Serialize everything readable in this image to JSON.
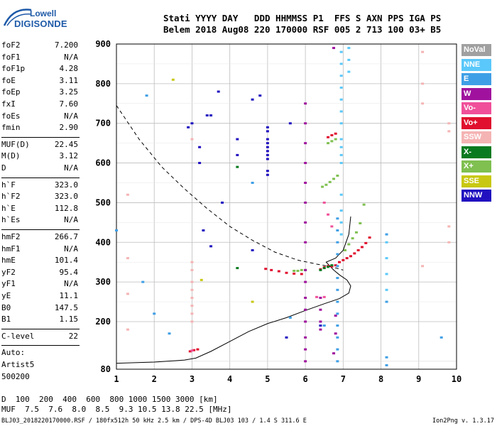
{
  "logo": {
    "line1": "Lowell",
    "line2": "DIGISONDE"
  },
  "header": {
    "line1": "Stati YYYY DAY   DDD HHMMSS P1  FFS S AXN PPS IGA PS",
    "line2": "Belem 2018 Aug08 220 170000 RSF 005 2 713 100 03+ B5"
  },
  "params": [
    [
      {
        "name": "foF2",
        "value": "7.200"
      },
      {
        "name": "foF1",
        "value": "N/A"
      },
      {
        "name": "foF1p",
        "value": "4.28"
      },
      {
        "name": "foE",
        "value": "3.11"
      },
      {
        "name": "foEp",
        "value": "3.25"
      },
      {
        "name": "fxI",
        "value": "7.60"
      },
      {
        "name": "foEs",
        "value": "N/A"
      },
      {
        "name": "fmin",
        "value": "2.90"
      }
    ],
    [
      {
        "name": "MUF(D)",
        "value": "22.45"
      },
      {
        "name": "M(D)",
        "value": "3.12"
      },
      {
        "name": "D",
        "value": "N/A"
      }
    ],
    [
      {
        "name": "h`F",
        "value": "323.0"
      },
      {
        "name": "h`F2",
        "value": "323.0"
      },
      {
        "name": "h`E",
        "value": "112.8"
      },
      {
        "name": "h`Es",
        "value": "N/A"
      }
    ],
    [
      {
        "name": "hmF2",
        "value": "266.7"
      },
      {
        "name": "hmF1",
        "value": "N/A"
      },
      {
        "name": "hmE",
        "value": "101.4"
      },
      {
        "name": "yF2",
        "value": "95.4"
      },
      {
        "name": "yF1",
        "value": "N/A"
      },
      {
        "name": "yE",
        "value": "11.1"
      },
      {
        "name": "B0",
        "value": "147.5"
      },
      {
        "name": "B1",
        "value": "1.15"
      }
    ],
    [
      {
        "name": "C-level",
        "value": "22"
      }
    ],
    [
      {
        "name": "Auto:",
        "value": ""
      },
      {
        "name": "Artist5",
        "value": ""
      },
      {
        "name": "500200",
        "value": ""
      }
    ]
  ],
  "legend": [
    {
      "label": "NoVal",
      "color": "#a0a0a0"
    },
    {
      "label": "NNE",
      "color": "#5ac8fa"
    },
    {
      "label": "E",
      "color": "#3f9fe6"
    },
    {
      "label": "W",
      "color": "#a0129e"
    },
    {
      "label": "Vo-",
      "color": "#f0509a"
    },
    {
      "label": "Vo+",
      "color": "#e0102e"
    },
    {
      "label": "SSW",
      "color": "#f5b4b4"
    },
    {
      "label": "X-",
      "color": "#0a7a20"
    },
    {
      "label": "X+",
      "color": "#7fc050"
    },
    {
      "label": "SSE",
      "color": "#c8c814"
    },
    {
      "label": "NNW",
      "color": "#2010c0"
    }
  ],
  "chart_data": {
    "type": "scatter",
    "xlim": [
      1,
      10
    ],
    "ylim": [
      80,
      900
    ],
    "x_ticks": [
      "1",
      "2",
      "3",
      "4",
      "5",
      "6",
      "7",
      "8",
      "9",
      "10"
    ],
    "y_ticks": [
      "80",
      "200",
      "300",
      "400",
      "500",
      "600",
      "700",
      "800",
      "900"
    ],
    "y_tick_values": [
      80,
      200,
      300,
      400,
      500,
      600,
      700,
      800,
      900
    ],
    "grid": true,
    "series": [
      {
        "name": "Vo+",
        "color": "#e0102e",
        "x": [
          2.95,
          3.05,
          3.15,
          4.95,
          5.1,
          5.3,
          5.5,
          5.7,
          5.9,
          6.4,
          6.5,
          6.6,
          6.7,
          6.8,
          6.9,
          7.0,
          7.1,
          7.2,
          7.3,
          7.4,
          7.5,
          7.6,
          7.7,
          6.6,
          6.7,
          6.8
        ],
        "y": [
          125,
          128,
          130,
          333,
          330,
          327,
          323,
          321,
          320,
          332,
          337,
          340,
          339,
          342,
          350,
          355,
          360,
          365,
          372,
          380,
          388,
          398,
          412,
          665,
          670,
          674
        ]
      },
      {
        "name": "X+",
        "color": "#7fc050",
        "x": [
          5.7,
          5.8,
          5.9,
          6.0,
          6.45,
          6.55,
          6.65,
          6.75,
          6.85,
          7.05,
          7.15,
          7.25,
          7.35,
          7.45,
          7.55,
          6.6,
          6.7,
          6.8
        ],
        "y": [
          328,
          328,
          330,
          330,
          540,
          545,
          552,
          560,
          568,
          380,
          395,
          410,
          425,
          448,
          495,
          650,
          655,
          660
        ]
      },
      {
        "name": "X-",
        "color": "#0a7a20",
        "x": [
          4.2,
          4.2,
          6.4,
          6.5,
          6.6,
          6.7
        ],
        "y": [
          335,
          590,
          330,
          335,
          338,
          342
        ]
      },
      {
        "name": "Vo-",
        "color": "#f0509a",
        "x": [
          3.0,
          6.3,
          6.5,
          6.7,
          6.5,
          6.6
        ],
        "y": [
          127,
          262,
          262,
          440,
          500,
          470
        ]
      },
      {
        "name": "W",
        "color": "#a0129e",
        "x": [
          6.0,
          6.0,
          6.0,
          6.0,
          6.0,
          6.0,
          6.0,
          6.0,
          6.0,
          6.0,
          6.0,
          6.0,
          6.0,
          6.0,
          6.0,
          6.0,
          6.75,
          6.8,
          6.8,
          6.75,
          6.4,
          6.4,
          6.4,
          6.4
        ],
        "y": [
          100,
          130,
          160,
          200,
          230,
          260,
          300,
          330,
          400,
          450,
          500,
          550,
          600,
          650,
          700,
          750,
          120,
          170,
          215,
          890,
          260,
          230,
          200,
          180
        ]
      },
      {
        "name": "NNE",
        "color": "#5ac8fa",
        "x": [
          6.95,
          6.95,
          6.95,
          6.95,
          6.95,
          6.95,
          6.95,
          6.95,
          6.95,
          6.95,
          6.95,
          6.95,
          6.95,
          6.95,
          6.95,
          7.15,
          7.15,
          7.15,
          8.15,
          8.15,
          8.15,
          8.15
        ],
        "y": [
          600,
          620,
          640,
          660,
          700,
          730,
          760,
          790,
          820,
          850,
          880,
          420,
          450,
          480,
          520,
          830,
          860,
          890,
          280,
          320,
          360,
          400
        ]
      },
      {
        "name": "E",
        "color": "#3f9fe6",
        "x": [
          6.85,
          6.85,
          6.85,
          6.85,
          6.85,
          6.85,
          6.85,
          6.85,
          6.85,
          6.85,
          6.85,
          6.85,
          6.85,
          8.15,
          8.15,
          8.15,
          8.15,
          1.0,
          1.7,
          1.8,
          2.0,
          2.4,
          4.6,
          5.6,
          6.5,
          9.6
        ],
        "y": [
          100,
          130,
          160,
          190,
          220,
          250,
          280,
          310,
          340,
          370,
          400,
          430,
          460,
          90,
          110,
          250,
          420,
          430,
          300,
          770,
          220,
          170,
          550,
          210,
          190,
          160
        ]
      },
      {
        "name": "SSW",
        "color": "#f5b4b4",
        "x": [
          3.0,
          3.0,
          3.0,
          3.0,
          3.0,
          3.0,
          3.0,
          3.0,
          3.0,
          1.3,
          1.3,
          1.3,
          9.8,
          9.8,
          9.8,
          9.1,
          9.1,
          9.1,
          9.8,
          1.3,
          9.1
        ],
        "y": [
          200,
          220,
          240,
          260,
          280,
          300,
          330,
          350,
          660,
          270,
          360,
          520,
          400,
          440,
          680,
          750,
          800,
          880,
          700,
          180,
          340
        ]
      },
      {
        "name": "SSE",
        "color": "#c8c814",
        "x": [
          2.5,
          3.25,
          4.6
        ],
        "y": [
          810,
          305,
          250
        ]
      },
      {
        "name": "NNW",
        "color": "#2010c0",
        "x": [
          2.9,
          3.0,
          3.2,
          3.2,
          3.4,
          3.5,
          3.7,
          3.8,
          4.2,
          4.2,
          4.6,
          4.8,
          5.0,
          5.0,
          5.0,
          5.0,
          5.0,
          5.0,
          5.0,
          5.0,
          5.0,
          5.0,
          5.6,
          5.5,
          6.4,
          4.6,
          3.3,
          3.5
        ],
        "y": [
          690,
          700,
          640,
          600,
          720,
          720,
          780,
          500,
          620,
          660,
          760,
          770,
          610,
          620,
          630,
          640,
          650,
          660,
          680,
          690,
          570,
          580,
          700,
          160,
          190,
          380,
          430,
          390
        ]
      }
    ]
  },
  "muf_table": {
    "d_label": "D",
    "d_values": "  100  200  400  600  800 1000 1500 3000 [km]",
    "muf_label": "MUF",
    "muf_values": "  7.5  7.6  8.0  8.5  9.3 10.5 13.8 22.5 [MHz]"
  },
  "footer": "BLJ03_2018220170000.RSF / 180fx512h 50 kHz 2.5 km / DPS-4D BLJ03 103 / 1.4 S 311.6 E",
  "version": "Ion2Png v. 1.3.17"
}
